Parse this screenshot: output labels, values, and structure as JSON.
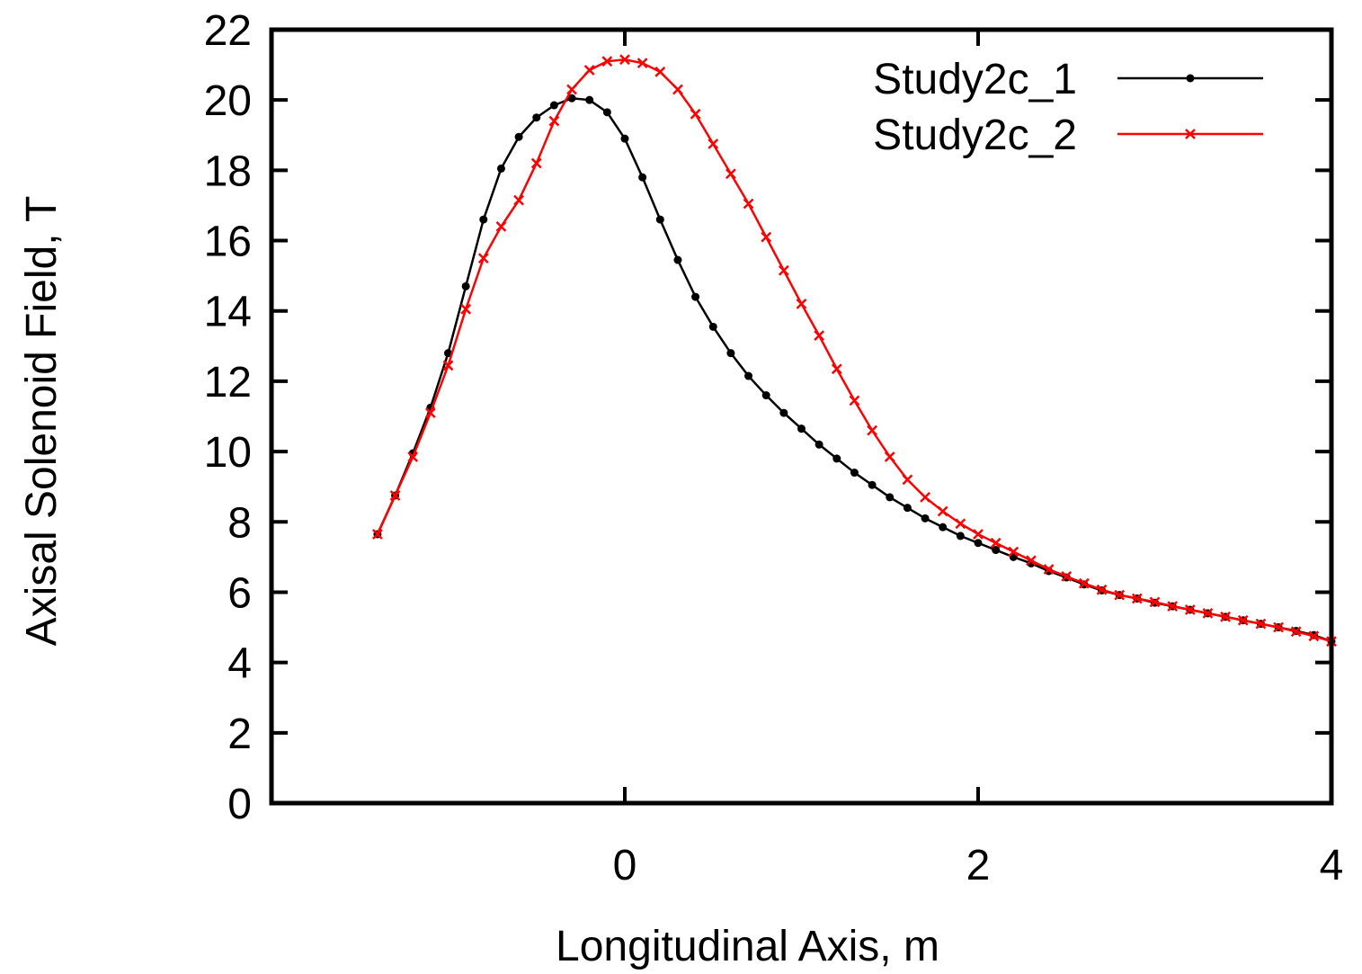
{
  "chart_data": {
    "type": "line",
    "title": "",
    "xlabel": "Longitudinal Axis, m",
    "ylabel": "Axisal Solenoid Field, T",
    "xlim": [
      -2,
      4
    ],
    "ylim": [
      0,
      22
    ],
    "xticks": [
      0,
      2,
      4
    ],
    "yticks": [
      0,
      2,
      4,
      6,
      8,
      10,
      12,
      14,
      16,
      18,
      20,
      22
    ],
    "grid": false,
    "legend": "top-right",
    "series": [
      {
        "name": "Study2c_1",
        "color": "#000000",
        "marker": "dot",
        "x": [
          -1.4,
          -1.3,
          -1.2,
          -1.1,
          -1.0,
          -0.9,
          -0.8,
          -0.7,
          -0.6,
          -0.5,
          -0.4,
          -0.3,
          -0.2,
          -0.1,
          0.0,
          0.1,
          0.2,
          0.3,
          0.4,
          0.5,
          0.6,
          0.7,
          0.8,
          0.9,
          1.0,
          1.1,
          1.2,
          1.3,
          1.4,
          1.5,
          1.6,
          1.7,
          1.8,
          1.9,
          2.0,
          2.1,
          2.2,
          2.3,
          2.4,
          2.5,
          2.6,
          2.7,
          2.8,
          2.9,
          3.0,
          3.1,
          3.2,
          3.3,
          3.4,
          3.5,
          3.6,
          3.7,
          3.8,
          3.9,
          4.0
        ],
        "y": [
          7.65,
          8.75,
          9.95,
          11.25,
          12.8,
          14.7,
          16.6,
          18.05,
          18.95,
          19.5,
          19.85,
          20.05,
          20.0,
          19.65,
          18.9,
          17.8,
          16.6,
          15.45,
          14.4,
          13.55,
          12.8,
          12.15,
          11.6,
          11.1,
          10.65,
          10.2,
          9.8,
          9.4,
          9.05,
          8.7,
          8.4,
          8.1,
          7.85,
          7.6,
          7.4,
          7.2,
          7.0,
          6.82,
          6.6,
          6.42,
          6.22,
          6.05,
          5.92,
          5.82,
          5.7,
          5.6,
          5.5,
          5.4,
          5.3,
          5.2,
          5.1,
          5.0,
          4.9,
          4.78,
          4.6
        ]
      },
      {
        "name": "Study2c_2",
        "color": "#ff0000",
        "marker": "x",
        "x": [
          -1.4,
          -1.3,
          -1.2,
          -1.1,
          -1.0,
          -0.9,
          -0.8,
          -0.7,
          -0.6,
          -0.5,
          -0.4,
          -0.3,
          -0.2,
          -0.1,
          0.0,
          0.1,
          0.2,
          0.3,
          0.4,
          0.5,
          0.6,
          0.7,
          0.8,
          0.9,
          1.0,
          1.1,
          1.2,
          1.3,
          1.4,
          1.5,
          1.6,
          1.7,
          1.8,
          1.9,
          2.0,
          2.1,
          2.2,
          2.3,
          2.4,
          2.5,
          2.6,
          2.7,
          2.8,
          2.9,
          3.0,
          3.1,
          3.2,
          3.3,
          3.4,
          3.5,
          3.6,
          3.7,
          3.8,
          3.9,
          4.0
        ],
        "y": [
          7.65,
          8.75,
          9.85,
          11.1,
          12.45,
          14.05,
          15.5,
          16.4,
          17.15,
          18.2,
          19.4,
          20.3,
          20.85,
          21.1,
          21.15,
          21.05,
          20.8,
          20.3,
          19.6,
          18.75,
          17.9,
          17.05,
          16.1,
          15.15,
          14.2,
          13.3,
          12.35,
          11.45,
          10.6,
          9.85,
          9.2,
          8.7,
          8.3,
          7.95,
          7.65,
          7.4,
          7.15,
          6.9,
          6.65,
          6.45,
          6.25,
          6.07,
          5.92,
          5.82,
          5.72,
          5.6,
          5.5,
          5.4,
          5.3,
          5.2,
          5.1,
          5.0,
          4.88,
          4.75,
          4.6
        ]
      }
    ]
  }
}
